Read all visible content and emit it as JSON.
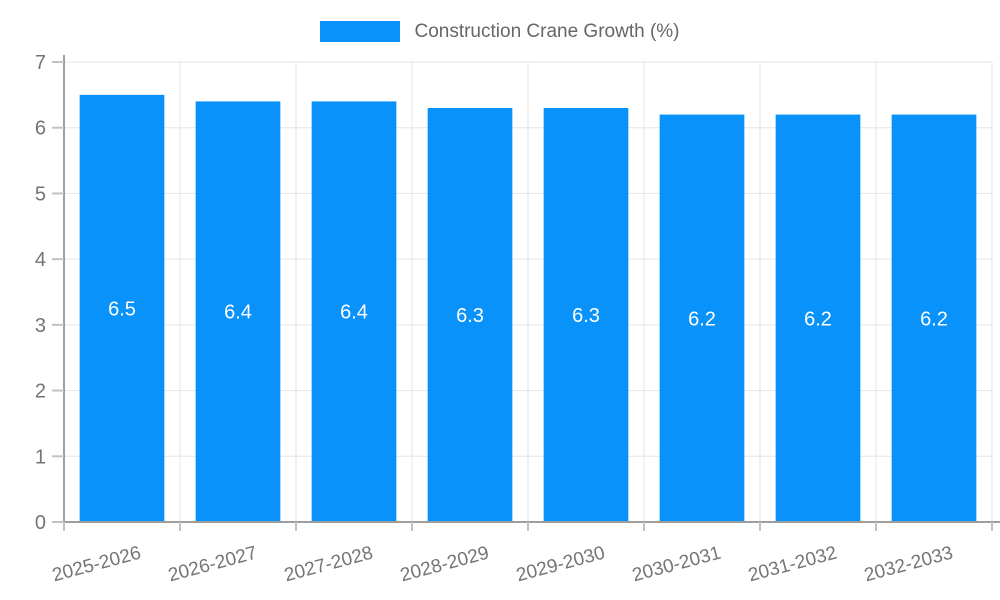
{
  "chart_data": {
    "type": "bar",
    "title": "Construction Crane Growth (%)",
    "legend": {
      "label": "Construction Crane Growth (%)",
      "position": "top"
    },
    "categories": [
      "2025-2026",
      "2026-2027",
      "2027-2028",
      "2028-2029",
      "2029-2030",
      "2030-2031",
      "2031-2032",
      "2032-2033"
    ],
    "values": [
      6.5,
      6.4,
      6.4,
      6.3,
      6.3,
      6.2,
      6.2,
      6.2
    ],
    "value_labels": [
      "6.5",
      "6.4",
      "6.4",
      "6.3",
      "6.3",
      "6.2",
      "6.2",
      "6.2"
    ],
    "xlabel": "",
    "ylabel": "",
    "ylim": [
      0,
      7
    ],
    "yticks": [
      0,
      1,
      2,
      3,
      4,
      5,
      6,
      7
    ],
    "grid": true,
    "x_label_rotation_deg": -15,
    "colors": {
      "bar": "#0892fa",
      "value_label": "#ffffff",
      "axis_line": "#9e9e9e",
      "grid_line": "#e6e6e6",
      "tick_mark": "#c2c2c2",
      "tick_text": "#757575",
      "legend_text": "#666666",
      "background": "#ffffff"
    }
  }
}
